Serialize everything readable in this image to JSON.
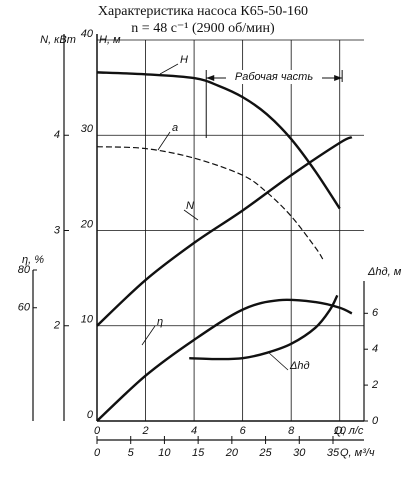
{
  "chart_data": {
    "type": "line",
    "title": "Характеристика насоса К65-50-160",
    "subtitle": "n = 48 с⁻¹ (2900 об/мин)",
    "xlabel": "Q, л/с",
    "xlim": [
      0,
      11
    ],
    "xticks": [
      0,
      2,
      4,
      6,
      8,
      10
    ],
    "x2label": "Q, м³/ч",
    "x2lim": [
      0,
      39.6
    ],
    "x2ticks": [
      0,
      5,
      10,
      15,
      20,
      25,
      30,
      35
    ],
    "ylabel": "H, м",
    "ylim": [
      0,
      40
    ],
    "yticks": [
      0,
      10,
      20,
      30,
      40
    ],
    "y2label": "N, кВт",
    "y2lim": [
      1,
      5
    ],
    "y2ticks": [
      2,
      3,
      4
    ],
    "y3label": "η, %",
    "y3lim": [
      0,
      80
    ],
    "y3ticks": [
      60,
      80
    ],
    "y4label": "Δhд, м",
    "y4lim": [
      0,
      7.8
    ],
    "y4ticks": [
      0,
      2,
      4,
      6
    ],
    "grid": true,
    "annotations": [
      "Рабочая часть"
    ],
    "series": [
      {
        "name": "H",
        "axis": "y",
        "color": "#111111",
        "x": [
          0,
          2,
          4,
          5,
          6,
          7,
          8,
          9,
          10
        ],
        "values": [
          36.6,
          36.4,
          36,
          35.2,
          34,
          32.2,
          29.6,
          26.2,
          22.3
        ]
      },
      {
        "name": "a",
        "axis": "y",
        "color": "#111111",
        "dashed": true,
        "x": [
          0,
          2,
          4,
          6,
          7,
          8,
          9,
          9.3
        ],
        "values": [
          28.8,
          28.6,
          27.6,
          25.8,
          24,
          21.5,
          18.2,
          17
        ]
      },
      {
        "name": "N",
        "axis": "y2",
        "color": "#111111",
        "x": [
          0,
          2,
          4,
          6,
          8,
          10,
          10.5
        ],
        "values": [
          2.0,
          2.48,
          2.87,
          3.21,
          3.58,
          3.92,
          3.98
        ]
      },
      {
        "name": "η",
        "axis": "y3",
        "color": "#111111",
        "x": [
          0,
          2,
          4,
          6,
          7.5,
          9,
          10,
          10.5
        ],
        "values": [
          0,
          24,
          43,
          59,
          64,
          63,
          60,
          57
        ]
      },
      {
        "name": "Δhд",
        "axis": "y4",
        "color": "#111111",
        "x": [
          3.8,
          5,
          6,
          7,
          8,
          9,
          9.6,
          9.9
        ],
        "values": [
          3.5,
          3.45,
          3.5,
          3.8,
          4.3,
          5.2,
          6.2,
          7.0
        ]
      }
    ]
  }
}
